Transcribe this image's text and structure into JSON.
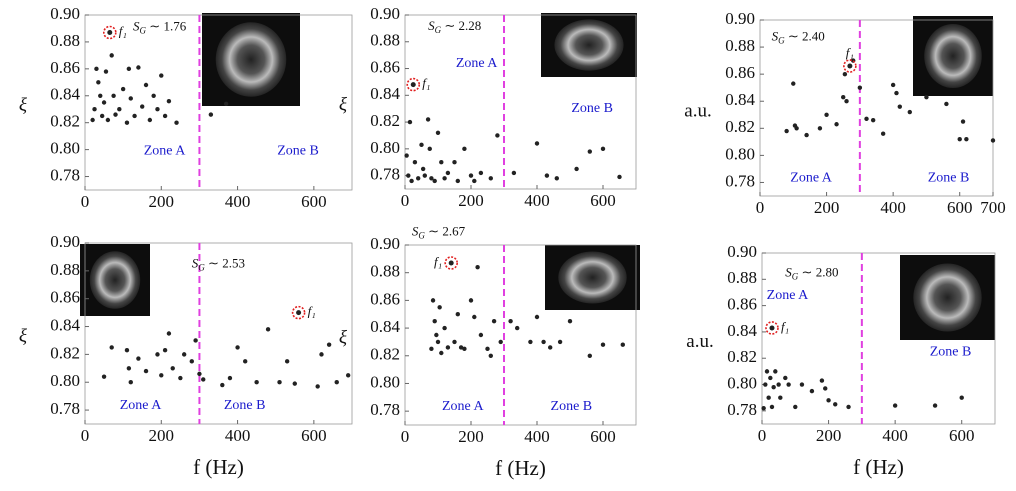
{
  "chart_data": [
    {
      "type": "scatter",
      "ylabel": "ξ",
      "color": "#222",
      "xlim": [
        0,
        700
      ],
      "ylim": [
        0.77,
        0.9
      ],
      "xticks": [
        0,
        200,
        400,
        600
      ],
      "yticks": [
        0.78,
        {
          "value": 0.8,
          "label": "0.80"
        },
        0.82,
        0.84,
        0.86,
        0.88,
        {
          "value": 0.9,
          "label": "0.90"
        }
      ],
      "x": [
        20,
        25,
        30,
        35,
        40,
        45,
        50,
        55,
        60,
        70,
        75,
        80,
        90,
        100,
        110,
        115,
        120,
        130,
        140,
        150,
        160,
        170,
        180,
        190,
        200,
        210,
        220,
        240,
        330,
        370
      ],
      "y": [
        0.822,
        0.83,
        0.86,
        0.85,
        0.84,
        0.825,
        0.835,
        0.858,
        0.822,
        0.87,
        0.84,
        0.826,
        0.83,
        0.845,
        0.82,
        0.86,
        0.838,
        0.825,
        0.861,
        0.832,
        0.848,
        0.822,
        0.84,
        0.83,
        0.855,
        0.825,
        0.836,
        0.82,
        0.826,
        0.834
      ],
      "vline": 300,
      "vline_color": "#e040e0",
      "highlight": {
        "x": 65,
        "y": 0.887,
        "label": "f₁"
      },
      "zones": [
        "Zone A",
        "Zone B"
      ],
      "sg_symbol": "S",
      "sg_subscript": "G",
      "sg_text": " ∼ 1.76"
    },
    {
      "type": "scatter",
      "ylabel": "ξ",
      "color": "#222",
      "xlim": [
        0,
        700
      ],
      "ylim": [
        0.77,
        0.9
      ],
      "xticks": [
        0,
        200,
        400,
        600
      ],
      "yticks": [
        0.78,
        {
          "value": 0.8,
          "label": "0.80"
        },
        0.82,
        0.84,
        0.86,
        0.88,
        {
          "value": 0.9,
          "label": "0.90"
        }
      ],
      "x": [
        5,
        10,
        15,
        20,
        30,
        40,
        50,
        55,
        60,
        70,
        75,
        80,
        90,
        100,
        110,
        120,
        130,
        150,
        160,
        180,
        200,
        210,
        230,
        260,
        280,
        330,
        400,
        430,
        460,
        520,
        560,
        600,
        650
      ],
      "y": [
        0.795,
        0.78,
        0.82,
        0.776,
        0.79,
        0.778,
        0.803,
        0.785,
        0.78,
        0.822,
        0.8,
        0.778,
        0.776,
        0.812,
        0.79,
        0.778,
        0.782,
        0.79,
        0.776,
        0.8,
        0.78,
        0.776,
        0.782,
        0.778,
        0.81,
        0.782,
        0.804,
        0.78,
        0.778,
        0.785,
        0.798,
        0.8,
        0.779
      ],
      "vline": 300,
      "vline_color": "#e040e0",
      "highlight": {
        "x": 25,
        "y": 0.848,
        "label": "f₁"
      },
      "zones": [
        "Zone A",
        "Zone B"
      ],
      "sg_symbol": "S",
      "sg_subscript": "G",
      "sg_text": " ∼ 2.28"
    },
    {
      "type": "scatter",
      "ylabel": "a.u.",
      "color": "#222",
      "xlim": [
        0,
        700
      ],
      "ylim": [
        0.77,
        0.9
      ],
      "xticks": [
        0,
        200,
        400,
        600,
        700
      ],
      "yticks": [
        0.78,
        {
          "value": 0.8,
          "label": "0.80"
        },
        0.82,
        0.84,
        0.86,
        0.88,
        {
          "value": 0.9,
          "label": "0.90"
        }
      ],
      "x": [
        80,
        100,
        105,
        110,
        140,
        180,
        200,
        230,
        250,
        255,
        260,
        280,
        300,
        320,
        340,
        370,
        400,
        410,
        420,
        450,
        500,
        560,
        600,
        610,
        620,
        700
      ],
      "y": [
        0.818,
        0.853,
        0.822,
        0.82,
        0.815,
        0.82,
        0.83,
        0.823,
        0.843,
        0.86,
        0.84,
        0.87,
        0.85,
        0.827,
        0.826,
        0.816,
        0.852,
        0.846,
        0.836,
        0.832,
        0.843,
        0.838,
        0.812,
        0.825,
        0.812,
        0.811
      ],
      "vline": 300,
      "vline_color": "#e040e0",
      "highlight": {
        "x": 270,
        "y": 0.866,
        "label": "f₁"
      },
      "zones": [
        "Zone A",
        "Zone B"
      ],
      "sg_symbol": "S",
      "sg_subscript": "G",
      "sg_text": " ∼ 2.40"
    },
    {
      "type": "scatter",
      "ylabel": "ξ",
      "xlabel": "f (Hz)",
      "color": "#222",
      "xlim": [
        0,
        700
      ],
      "ylim": [
        0.77,
        0.9
      ],
      "xticks": [
        0,
        200,
        400,
        600
      ],
      "yticks": [
        0.78,
        {
          "value": 0.8,
          "label": "0.80"
        },
        0.82,
        0.84,
        0.86,
        0.88,
        {
          "value": 0.9,
          "label": "0.90"
        }
      ],
      "x": [
        50,
        70,
        110,
        115,
        120,
        140,
        160,
        190,
        200,
        210,
        220,
        230,
        250,
        260,
        280,
        290,
        300,
        310,
        360,
        380,
        400,
        420,
        450,
        480,
        510,
        530,
        550,
        610,
        620,
        640,
        660,
        690
      ],
      "y": [
        0.804,
        0.825,
        0.823,
        0.81,
        0.8,
        0.817,
        0.808,
        0.82,
        0.805,
        0.823,
        0.835,
        0.81,
        0.803,
        0.82,
        0.815,
        0.83,
        0.806,
        0.802,
        0.798,
        0.803,
        0.825,
        0.815,
        0.8,
        0.838,
        0.8,
        0.815,
        0.799,
        0.797,
        0.82,
        0.827,
        0.8,
        0.805
      ],
      "vline": 300,
      "vline_color": "#e040e0",
      "highlight": {
        "x": 560,
        "y": 0.85,
        "label": "f₁"
      },
      "zones": [
        "Zone A",
        "Zone B"
      ],
      "sg_symbol": "S",
      "sg_subscript": "G",
      "sg_text": " ∼ 2.53"
    },
    {
      "type": "scatter",
      "ylabel": "ξ",
      "xlabel": "f (Hz)",
      "color": "#222",
      "xlim": [
        0,
        700
      ],
      "ylim": [
        0.77,
        0.9
      ],
      "xticks": [
        0,
        200,
        400,
        600
      ],
      "yticks": [
        0.78,
        {
          "value": 0.8,
          "label": "0.80"
        },
        0.82,
        0.84,
        0.86,
        0.88,
        {
          "value": 0.9,
          "label": "0.90"
        }
      ],
      "x": [
        80,
        85,
        90,
        95,
        100,
        105,
        110,
        120,
        130,
        150,
        160,
        170,
        180,
        200,
        210,
        220,
        230,
        250,
        260,
        270,
        290,
        320,
        340,
        380,
        400,
        420,
        440,
        470,
        500,
        560,
        600,
        660
      ],
      "y": [
        0.825,
        0.86,
        0.845,
        0.835,
        0.83,
        0.855,
        0.822,
        0.84,
        0.826,
        0.83,
        0.85,
        0.826,
        0.825,
        0.86,
        0.848,
        0.884,
        0.835,
        0.825,
        0.82,
        0.845,
        0.83,
        0.845,
        0.84,
        0.83,
        0.848,
        0.83,
        0.826,
        0.83,
        0.845,
        0.82,
        0.828,
        0.828
      ],
      "vline": 300,
      "vline_color": "#e040e0",
      "highlight": {
        "x": 140,
        "y": 0.887,
        "label": "f₁"
      },
      "zones": [
        "Zone A",
        "Zone B"
      ],
      "sg_symbol": "S",
      "sg_subscript": "G",
      "sg_text": " ∼ 2.67"
    },
    {
      "type": "scatter",
      "ylabel": "a.u.",
      "xlabel": "f (Hz)",
      "color": "#222",
      "xlim": [
        0,
        700
      ],
      "ylim": [
        0.77,
        0.9
      ],
      "xticks": [
        0,
        200,
        400,
        600
      ],
      "yticks": [
        0.78,
        {
          "value": 0.8,
          "label": "0.80"
        },
        0.82,
        0.84,
        0.86,
        0.88,
        {
          "value": 0.9,
          "label": "0.90"
        }
      ],
      "x": [
        5,
        10,
        15,
        20,
        25,
        30,
        35,
        40,
        50,
        55,
        70,
        80,
        100,
        120,
        150,
        180,
        190,
        200,
        220,
        260,
        400,
        520,
        600
      ],
      "y": [
        0.782,
        0.8,
        0.81,
        0.79,
        0.805,
        0.783,
        0.798,
        0.81,
        0.8,
        0.79,
        0.805,
        0.8,
        0.783,
        0.8,
        0.795,
        0.803,
        0.797,
        0.788,
        0.785,
        0.783,
        0.784,
        0.784,
        0.79
      ],
      "vline": 300,
      "vline_color": "#e040e0",
      "highlight": {
        "x": 30,
        "y": 0.843,
        "label": "f₁"
      },
      "zones": [
        "Zone A",
        "Zone B"
      ],
      "sg_symbol": "S",
      "sg_subscript": "G",
      "sg_text": " ∼ 2.80"
    }
  ]
}
